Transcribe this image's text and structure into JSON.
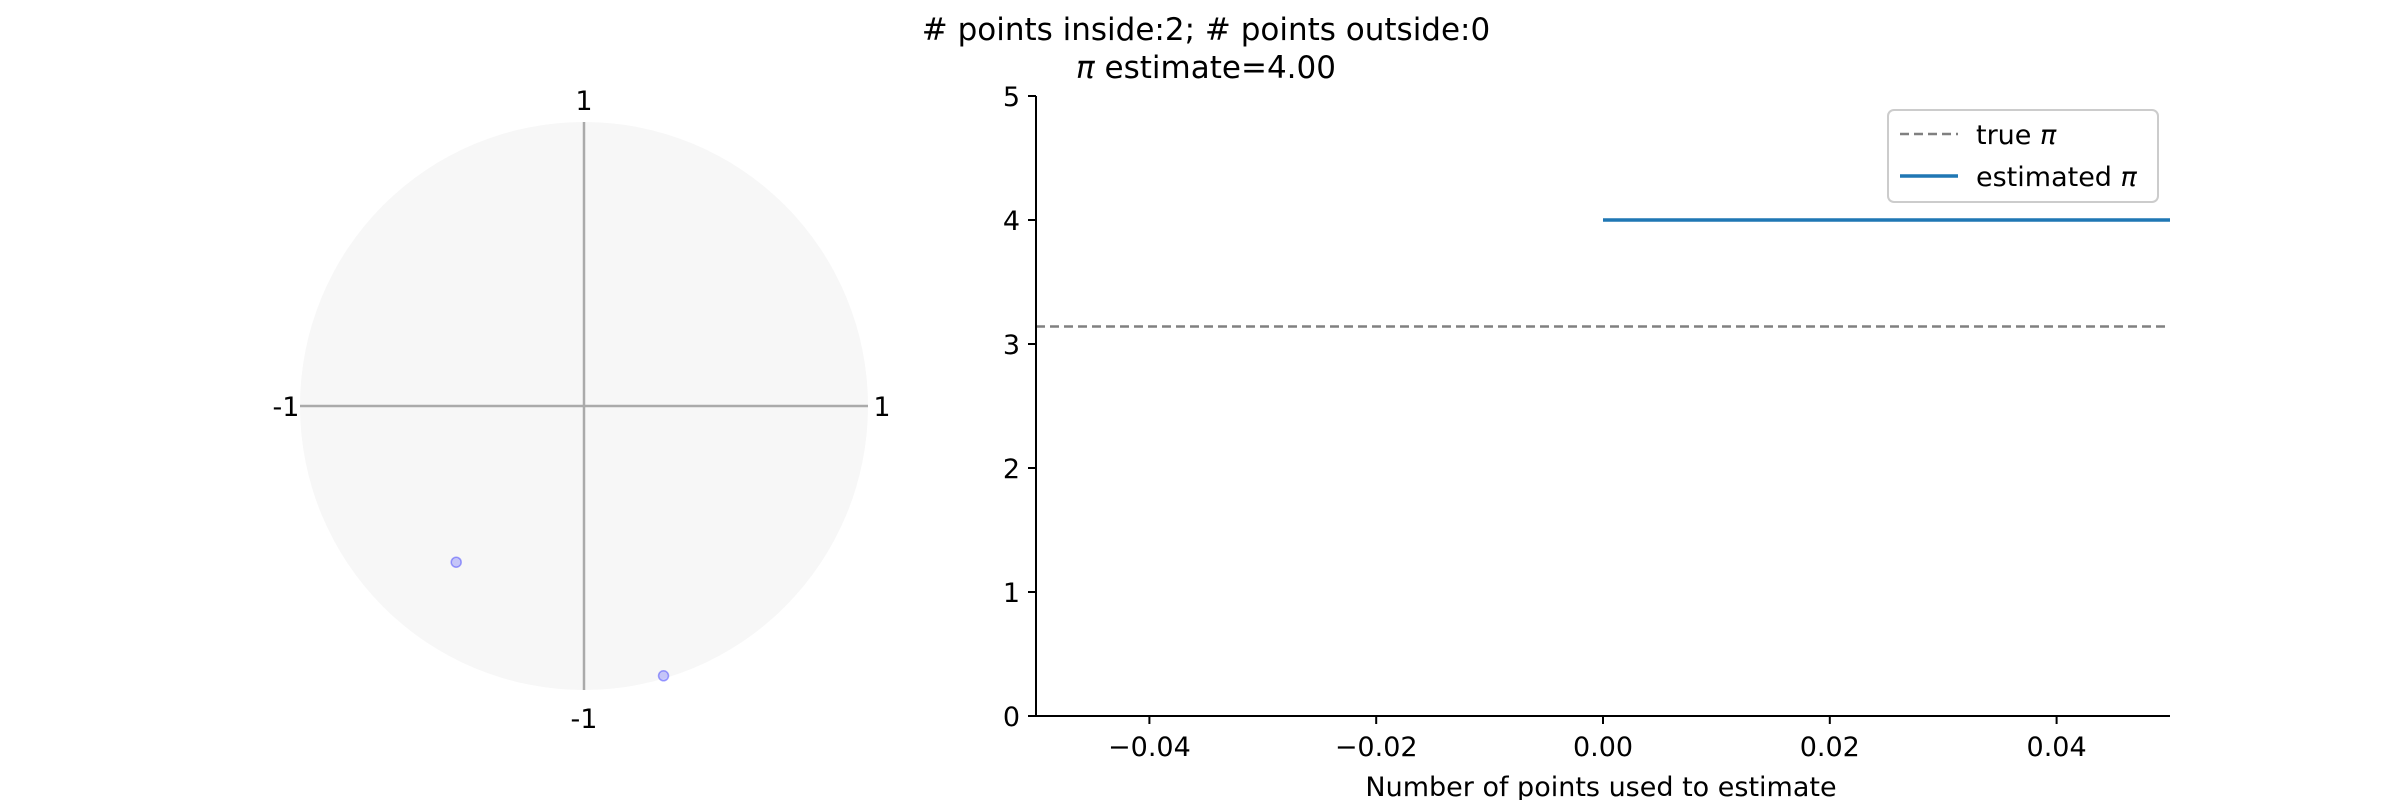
{
  "title": {
    "line1": "# points inside:2; # points outside:0",
    "line2_symbol": "π",
    "line2_text": " estimate=4.00"
  },
  "chart_data": [
    {
      "type": "scatter",
      "panel": "circle",
      "x_ticks": [
        {
          "value": -1,
          "label": "-1"
        },
        {
          "value": 1,
          "label": "1"
        }
      ],
      "y_ticks": [
        {
          "value": 1,
          "label": "1"
        },
        {
          "value": -1,
          "label": "-1"
        }
      ],
      "xlim": [
        -1,
        1
      ],
      "ylim": [
        -1,
        1
      ],
      "circle_fill": "#f7f7f7",
      "axis_color": "#aaaaaa",
      "point_color": "#0000ff",
      "points_inside": [
        {
          "x": -0.45,
          "y": -0.55
        },
        {
          "x": 0.28,
          "y": -0.95
        }
      ],
      "points_outside": []
    },
    {
      "type": "line",
      "panel": "estimate",
      "xlabel": "Number of points used to estimate",
      "ylabel": "",
      "xlim": [
        -0.05,
        0.05
      ],
      "ylim": [
        0,
        5
      ],
      "x_ticks": [
        {
          "value": -0.04,
          "label": "−0.04"
        },
        {
          "value": -0.02,
          "label": "−0.02"
        },
        {
          "value": 0.0,
          "label": "0.00"
        },
        {
          "value": 0.02,
          "label": "0.02"
        },
        {
          "value": 0.04,
          "label": "0.04"
        }
      ],
      "y_ticks": [
        {
          "value": 0,
          "label": "0"
        },
        {
          "value": 1,
          "label": "1"
        },
        {
          "value": 2,
          "label": "2"
        },
        {
          "value": 3,
          "label": "3"
        },
        {
          "value": 4,
          "label": "4"
        },
        {
          "value": 5,
          "label": "5"
        }
      ],
      "series": [
        {
          "name": "true π",
          "legend_text": "true ",
          "legend_symbol": "π",
          "style": "dashed",
          "color": "#808080",
          "x": [
            -0.05,
            0.05
          ],
          "y": [
            3.14159,
            3.14159
          ]
        },
        {
          "name": "estimated π",
          "legend_text": "estimated ",
          "legend_symbol": "π",
          "style": "solid",
          "color": "#1f77b4",
          "x": [
            0.0,
            0.05
          ],
          "y": [
            4.0,
            4.0
          ]
        }
      ],
      "legend_position": "top-right",
      "grid": false
    }
  ]
}
